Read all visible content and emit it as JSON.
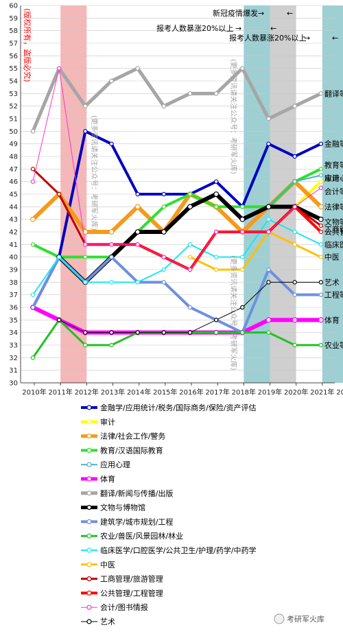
{
  "chart_data": {
    "type": "line",
    "x": [
      "2010年",
      "2011年",
      "2012年",
      "2013年",
      "2014年",
      "2015年",
      "2016年",
      "2017年",
      "2018年",
      "2019年",
      "2020年",
      "2021年",
      "2022年"
    ],
    "ylim": [
      30,
      60
    ],
    "yticks": [
      30,
      31,
      32,
      33,
      34,
      35,
      36,
      37,
      38,
      39,
      40,
      41,
      42,
      43,
      44,
      45,
      46,
      47,
      48,
      49,
      50,
      51,
      52,
      53,
      54,
      55,
      56,
      57,
      58,
      59,
      60
    ],
    "grid": true,
    "legend_position": "bottom",
    "shaded_regions": [
      {
        "from": "2011年",
        "to": "2012年",
        "color": "#f4b8b8"
      },
      {
        "from": "2018年",
        "to": "2019年",
        "color": "#9ecfd3"
      },
      {
        "from": "2019年",
        "to": "2020年",
        "color": "#cfcfcf"
      },
      {
        "from": "2021年",
        "to": "2022年",
        "color": "#9ecfd3"
      }
    ],
    "annotations": [
      {
        "text": "新冠疫情爆发",
        "color": "#000000"
      },
      {
        "text": "报考人数暴涨20%以上",
        "color": "#000000"
      },
      {
        "text": "报考人数暴涨20%以上",
        "color": "#000000"
      },
      {
        "text": "(版权所有，盗版必究)",
        "color": "#ff0000"
      },
      {
        "text": "(更多资讯请关注公众号：考研军火库)",
        "color": "#a0a0a0"
      },
      {
        "text": "(更多资讯请关注公众号：考研军火库)",
        "color": "#a0a0a0"
      },
      {
        "text": "(更多资讯请关注公众号：考研军火库)",
        "color": "#a0a0a0"
      }
    ],
    "series": [
      {
        "name": "金融学/应用统计/税务/国际商务/保险/资产评估",
        "color": "#0000c0",
        "width": 4,
        "values": [
          36,
          40,
          50,
          49,
          45,
          45,
          45,
          46,
          44,
          49,
          48,
          49,
          null
        ],
        "label": "金融等"
      },
      {
        "name": "审计",
        "color": "#ffff00",
        "width": 4,
        "values": [
          null,
          null,
          null,
          null,
          null,
          null,
          null,
          42,
          42,
          42,
          44,
          46,
          null
        ],
        "label": "审计"
      },
      {
        "name": "法律/社会工作/警务",
        "color": "#f59a1a",
        "width": 6,
        "values": [
          43,
          45,
          42,
          42,
          44,
          42,
          45,
          44,
          42,
          44,
          46,
          44,
          null
        ],
        "label": "法律等"
      },
      {
        "name": "教育/汉语国际教育",
        "color": "#2ee02e",
        "width": 4,
        "values": [
          41,
          40,
          40,
          40,
          42,
          44,
          45,
          44,
          44,
          44,
          46,
          47,
          null
        ],
        "label": "教育等"
      },
      {
        "name": "应用心理",
        "color": "#4ab0c8",
        "width": 2,
        "values": [
          null,
          40,
          38,
          40,
          42,
          42,
          44,
          45,
          43,
          44,
          46,
          46.5,
          null
        ],
        "label": "应用心理"
      },
      {
        "name": "体育",
        "color": "#ff00ff",
        "width": 6,
        "values": [
          36,
          35,
          34,
          34,
          34,
          34,
          34,
          34,
          34,
          35,
          35,
          35,
          null
        ],
        "label": "体育"
      },
      {
        "name": "翻译/新闻与传播/出版",
        "color": "#a6a6a6",
        "width": 5,
        "values": [
          50,
          55,
          52,
          54,
          55,
          52,
          53,
          53,
          55,
          51,
          52,
          53,
          null
        ],
        "label": "翻译等"
      },
      {
        "name": "文物与博物馆",
        "color": "#000000",
        "width": 6,
        "values": [
          null,
          40,
          38,
          40,
          42,
          42,
          44,
          45,
          43,
          44,
          44,
          43,
          null
        ],
        "label": "文物等"
      },
      {
        "name": "建筑学/城市规划/工程",
        "color": "#6f8fe0",
        "width": 4,
        "values": [
          36,
          40,
          38,
          40,
          38,
          38,
          36,
          35,
          34,
          39,
          37,
          37,
          null
        ],
        "label": "工程等"
      },
      {
        "name": "农业/兽医/风景园林/林业",
        "color": "#22c022",
        "width": 3,
        "values": [
          32,
          35,
          33,
          33,
          34,
          34,
          34,
          34,
          34,
          34,
          33,
          33,
          null
        ],
        "label": "农业等"
      },
      {
        "name": "临床医学/口腔医学/公共卫生/护理/药学/中药学",
        "color": "#18e8f0",
        "width": 2,
        "values": [
          37,
          40,
          38,
          38,
          38,
          39,
          41,
          40,
          40,
          43,
          42,
          41,
          null
        ],
        "label": "临床医学等"
      },
      {
        "name": "中医",
        "color": "#ffc000",
        "width": 3,
        "values": [
          null,
          null,
          null,
          null,
          null,
          null,
          40,
          39,
          39,
          42,
          41,
          40,
          null
        ],
        "label": "中医"
      },
      {
        "name": "工商管理/旅游管理",
        "color": "#c00000",
        "width": 3,
        "values": [
          47,
          45,
          41,
          41,
          41,
          40,
          39,
          42,
          42,
          42,
          44,
          42.5,
          null
        ],
        "label": "工商管理等"
      },
      {
        "name": "公共管理/工程管理",
        "color": "#ff0000",
        "width": 4,
        "values": [
          null,
          null,
          41,
          41,
          41,
          40,
          39,
          42,
          42,
          42,
          44,
          42,
          null
        ],
        "label": "公共管理等"
      },
      {
        "name": "会计/图书情报",
        "color": "#ff33cc",
        "width": 1,
        "values": [
          46,
          55,
          41,
          41,
          41,
          40,
          39,
          42,
          42,
          42,
          44,
          45.5,
          null
        ],
        "label": "会计等"
      },
      {
        "name": "艺术",
        "color": "#000000",
        "width": 1,
        "values": [
          null,
          35,
          34,
          34,
          34,
          34,
          34,
          35,
          36,
          38,
          38,
          38,
          null
        ],
        "label": "艺术"
      }
    ],
    "footer_mark": "考研军火库"
  }
}
